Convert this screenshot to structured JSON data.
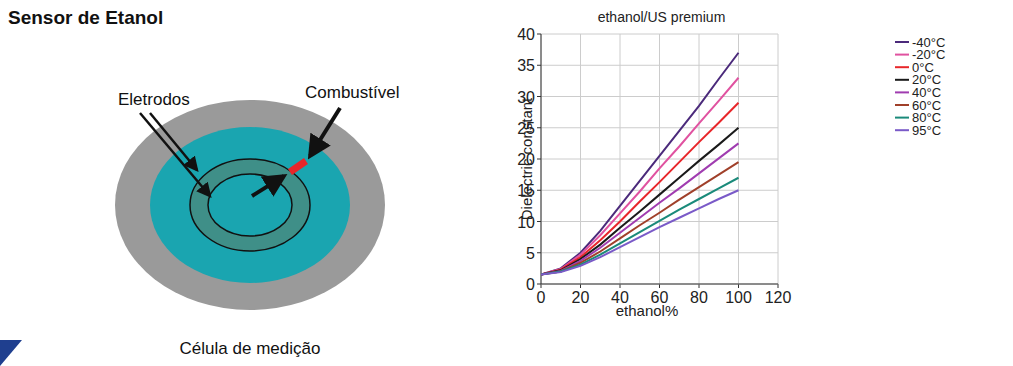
{
  "header": {
    "title": "Sensor de Etanol"
  },
  "diagram": {
    "electrodes_label": "Eletrodos",
    "fuel_label": "Combustível",
    "caption": "Célula de medição"
  },
  "chart_data": {
    "type": "line",
    "title": "ethanol/US premium",
    "x_label": "ethanol%",
    "y_label": "Dielectric constant",
    "x": [
      0,
      10,
      20,
      30,
      40,
      50,
      60,
      70,
      80,
      90,
      100
    ],
    "xlim": [
      0,
      120
    ],
    "xticks": [
      0,
      20,
      40,
      60,
      80,
      100,
      120
    ],
    "ylim": [
      0,
      40
    ],
    "yticks": [
      0,
      5,
      10,
      15,
      20,
      25,
      30,
      35,
      40
    ],
    "grid": true,
    "legend": "right",
    "series": [
      {
        "name": "-40°C",
        "color": "#4b2a7b",
        "values": [
          1.5,
          2.5,
          5,
          8.5,
          12.5,
          16.5,
          20.5,
          24.5,
          28.5,
          32.8,
          37
        ]
      },
      {
        "name": "-20°C",
        "color": "#e052a0",
        "values": [
          1.5,
          2.4,
          4.7,
          7.8,
          11.3,
          14.8,
          18.5,
          22,
          25.7,
          29.3,
          33
        ]
      },
      {
        "name": "0°C",
        "color": "#e8262a",
        "values": [
          1.5,
          2.3,
          4.3,
          7,
          10,
          13.2,
          16.3,
          19.5,
          22.7,
          25.8,
          29
        ]
      },
      {
        "name": "20°C",
        "color": "#1a1a1a",
        "values": [
          1.5,
          2.2,
          4,
          6.3,
          9,
          11.6,
          14.3,
          17,
          19.7,
          22.3,
          25
        ]
      },
      {
        "name": "40°C",
        "color": "#a03cb0",
        "values": [
          1.5,
          2.1,
          3.7,
          5.8,
          8.2,
          10.6,
          13,
          15.3,
          17.7,
          20.1,
          22.5
        ]
      },
      {
        "name": "60°C",
        "color": "#a0402a",
        "values": [
          1.5,
          2,
          3.4,
          5.2,
          7.3,
          9.4,
          11.4,
          13.5,
          15.5,
          17.5,
          19.5
        ]
      },
      {
        "name": "80°C",
        "color": "#1a8a7a",
        "values": [
          1.5,
          2,
          3.1,
          4.7,
          6.5,
          8.3,
          10.1,
          11.9,
          13.6,
          15.3,
          17
        ]
      },
      {
        "name": "95°C",
        "color": "#7a5ac8",
        "values": [
          1.5,
          1.9,
          2.9,
          4.3,
          5.9,
          7.5,
          9.1,
          10.6,
          12.1,
          13.6,
          15
        ]
      }
    ]
  }
}
